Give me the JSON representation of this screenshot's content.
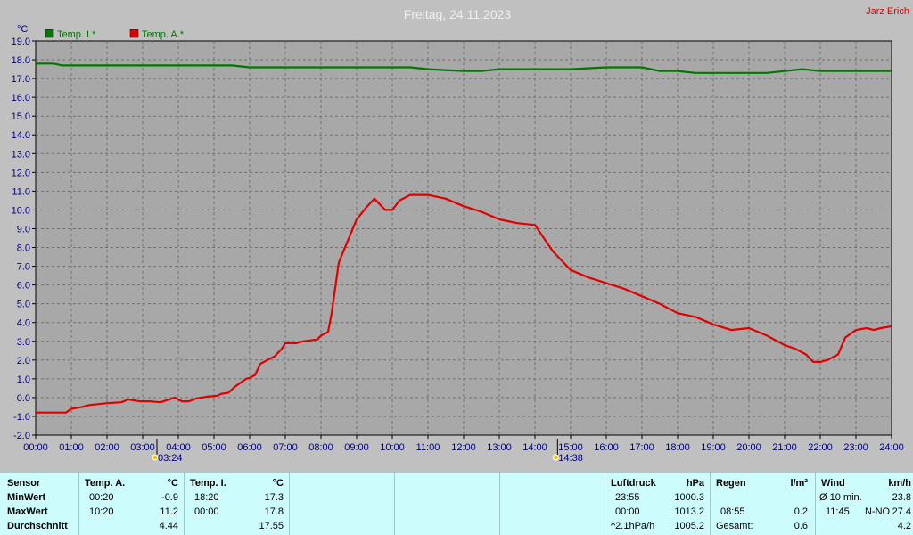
{
  "header": {
    "title": "Freitag, 24.11.2023",
    "author": "Jarz Erich"
  },
  "chart_data": {
    "type": "line",
    "title": "Freitag, 24.11.2023",
    "ylabel": "°C",
    "ylim": [
      -2,
      19
    ],
    "xlim": [
      0,
      24
    ],
    "yticks": [
      "-2.0",
      "-1.0",
      "0.0",
      "1.0",
      "2.0",
      "3.0",
      "4.0",
      "5.0",
      "6.0",
      "7.0",
      "8.0",
      "9.0",
      "10.0",
      "11.0",
      "12.0",
      "13.0",
      "14.0",
      "15.0",
      "16.0",
      "17.0",
      "18.0",
      "19.0"
    ],
    "xticks": [
      "00:00",
      "01:00",
      "02:00",
      "03:00",
      "04:00",
      "05:00",
      "06:00",
      "07:00",
      "08:00",
      "09:00",
      "10:00",
      "11:00",
      "12:00",
      "13:00",
      "14:00",
      "15:00",
      "16:00",
      "17:00",
      "18:00",
      "19:00",
      "20:00",
      "21:00",
      "22:00",
      "23:00",
      "24:00"
    ],
    "grid": true,
    "legend_position": "top-left",
    "markers": [
      {
        "label": "03:24",
        "x": 3.4,
        "icon": "sunrise-icon"
      },
      {
        "label": "14:38",
        "x": 14.633,
        "icon": "sunset-icon"
      }
    ],
    "series": [
      {
        "name": "Temp. I.*",
        "color": "#007800",
        "x": [
          0,
          0.5,
          0.75,
          1,
          2,
          3,
          4,
          5,
          5.5,
          6,
          7,
          8,
          9,
          10,
          10.5,
          11,
          12,
          12.5,
          13,
          14,
          15,
          16,
          17,
          17.5,
          18,
          18.5,
          19,
          19.5,
          20,
          20.5,
          21,
          21.5,
          22,
          22.5,
          23,
          24
        ],
        "y": [
          17.8,
          17.8,
          17.7,
          17.7,
          17.7,
          17.7,
          17.7,
          17.7,
          17.7,
          17.6,
          17.6,
          17.6,
          17.6,
          17.6,
          17.6,
          17.5,
          17.4,
          17.4,
          17.5,
          17.5,
          17.5,
          17.6,
          17.6,
          17.4,
          17.4,
          17.3,
          17.3,
          17.3,
          17.3,
          17.3,
          17.4,
          17.5,
          17.4,
          17.4,
          17.4,
          17.4
        ]
      },
      {
        "name": "Temp. A.*",
        "color": "#e00000",
        "x": [
          0,
          0.5,
          0.85,
          1,
          1.3,
          1.5,
          2,
          2.4,
          2.6,
          2.9,
          3.2,
          3.5,
          3.9,
          4.1,
          4.3,
          4.5,
          4.8,
          5.1,
          5.2,
          5.4,
          5.6,
          5.9,
          6,
          6.15,
          6.3,
          6.5,
          6.7,
          6.9,
          7.0,
          7.3,
          7.5,
          7.9,
          8.0,
          8.2,
          8.3,
          8.5,
          9.0,
          9.3,
          9.5,
          9.7,
          9.8,
          10.0,
          10.2,
          10.5,
          11.0,
          11.5,
          12.0,
          12.5,
          13.0,
          13.5,
          14.0,
          14.5,
          15.0,
          15.5,
          16.0,
          16.5,
          17.0,
          17.5,
          18.0,
          18.5,
          19.0,
          19.5,
          20.0,
          20.5,
          21.0,
          21.3,
          21.6,
          21.8,
          22.0,
          22.2,
          22.5,
          22.7,
          23.0,
          23.3,
          23.5,
          23.7,
          24.0
        ],
        "y": [
          -0.8,
          -0.8,
          -0.8,
          -0.6,
          -0.5,
          -0.4,
          -0.3,
          -0.25,
          -0.1,
          -0.2,
          -0.2,
          -0.25,
          0.0,
          -0.2,
          -0.2,
          -0.05,
          0.05,
          0.1,
          0.2,
          0.25,
          0.6,
          1.0,
          1.05,
          1.2,
          1.8,
          2.0,
          2.2,
          2.6,
          2.9,
          2.9,
          3.0,
          3.1,
          3.3,
          3.5,
          4.5,
          7.2,
          9.5,
          10.2,
          10.6,
          10.2,
          10.0,
          10.0,
          10.5,
          10.8,
          10.8,
          10.6,
          10.2,
          9.9,
          9.5,
          9.3,
          9.2,
          7.8,
          6.8,
          6.4,
          6.1,
          5.8,
          5.4,
          5.0,
          4.5,
          4.3,
          3.9,
          3.6,
          3.7,
          3.3,
          2.8,
          2.6,
          2.3,
          1.9,
          1.9,
          2.0,
          2.3,
          3.2,
          3.6,
          3.7,
          3.6,
          3.7,
          3.8
        ]
      }
    ]
  },
  "table": {
    "row_labels": [
      "Sensor",
      "MinWert",
      "MaxWert",
      "Durchschnitt"
    ],
    "temp_a": {
      "header": "Temp. A.",
      "unit": "°C",
      "min_time": "00:20",
      "min": "-0.9",
      "max_time": "10:20",
      "max": "11.2",
      "avg": "4.44"
    },
    "temp_i": {
      "header": "Temp. I.",
      "unit": "°C",
      "min_time": "18:20",
      "min": "17.3",
      "max_time": "00:00",
      "max": "17.8",
      "avg": "17.55"
    },
    "pressure": {
      "header": "Luftdruck",
      "unit": "hPa",
      "min_time": "23:55",
      "min": "1000.3",
      "max_time": "00:00",
      "max": "1013.2",
      "trend": "^2.1hPa/h",
      "avg": "1005.2"
    },
    "rain": {
      "header": "Regen",
      "unit": "l/m²",
      "max_time": "08:55",
      "max": "0.2",
      "total_label": "Gesamt:",
      "total": "0.6"
    },
    "wind": {
      "header": "Wind",
      "unit": "km/h",
      "avg_label": "Ø 10 min.",
      "avg": "23.8",
      "max_time": "11:45",
      "max_dir": "N-NO",
      "max": "27.4",
      "mean": "4.2"
    }
  }
}
